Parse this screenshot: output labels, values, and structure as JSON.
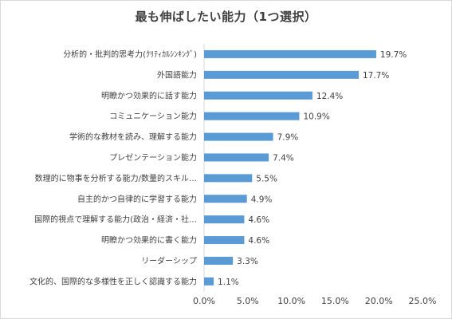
{
  "chart_data": {
    "type": "bar",
    "orientation": "horizontal",
    "title": "最も伸ばしたい能力（1つ選択）",
    "categories": [
      "分析的・批判的思考力(ｸﾘﾃｨｶﾙｼﾝｷﾝｸﾞ)",
      "外国語能力",
      "明瞭かつ効果的に話す能力",
      "コミュニケーション能力",
      "学術的な教材を読み、理解する能力",
      "プレゼンテーション能力",
      "数理的に物事を分析する能力/数量的スキル…",
      "自主的かつ自律的に学習する能力",
      "国際的視点で理解する能力(政治・経済・社…",
      "明瞭かつ効果的に書く能力",
      "リーダーシップ",
      "文化的、国際的な多様性を正しく認識する能力"
    ],
    "values": [
      19.7,
      17.7,
      12.4,
      10.9,
      7.9,
      7.4,
      5.5,
      4.9,
      4.6,
      4.6,
      3.3,
      1.1
    ],
    "data_labels": [
      "19.7%",
      "17.7%",
      "12.4%",
      "10.9%",
      "7.9%",
      "7.4%",
      "5.5%",
      "4.9%",
      "4.6%",
      "4.6%",
      "3.3%",
      "1.1%"
    ],
    "x_ticks": [
      0,
      5,
      10,
      15,
      20,
      25
    ],
    "x_tick_labels": [
      "0.0%",
      "5.0%",
      "10.0%",
      "15.0%",
      "20.0%",
      "25.0%"
    ],
    "xlim": [
      0,
      25
    ],
    "grid": false,
    "legend": "none",
    "bar_color": "#5b9bd5"
  }
}
